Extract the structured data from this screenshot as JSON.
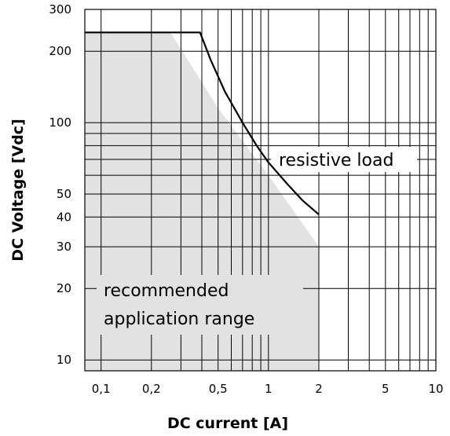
{
  "chart_data": {
    "type": "line",
    "title": "",
    "xlabel": "DC current [A]",
    "ylabel": "DC Voltage [Vdc]",
    "x_scale": "log",
    "y_scale": "log",
    "xlim": [
      0.08,
      10
    ],
    "ylim": [
      9,
      300
    ],
    "grid": true,
    "x_ticks": [
      {
        "value": 0.1,
        "label": "0,1"
      },
      {
        "value": 0.2,
        "label": "0,2"
      },
      {
        "value": 0.5,
        "label": "0,5"
      },
      {
        "value": 1,
        "label": "1"
      },
      {
        "value": 2,
        "label": "2"
      },
      {
        "value": 5,
        "label": "5"
      },
      {
        "value": 10,
        "label": "10"
      }
    ],
    "y_ticks": [
      {
        "value": 10,
        "label": "10"
      },
      {
        "value": 20,
        "label": "20"
      },
      {
        "value": 30,
        "label": "30"
      },
      {
        "value": 40,
        "label": "40"
      },
      {
        "value": 50,
        "label": "50"
      },
      {
        "value": 100,
        "label": "100"
      },
      {
        "value": 200,
        "label": "200"
      },
      {
        "value": 300,
        "label": "300"
      }
    ],
    "x_grid": [
      0.1,
      0.2,
      0.3,
      0.4,
      0.5,
      0.6,
      0.7,
      0.8,
      0.9,
      1,
      2,
      3,
      4,
      5,
      6,
      7,
      8,
      9,
      10
    ],
    "y_grid": [
      10,
      20,
      30,
      40,
      50,
      60,
      70,
      80,
      90,
      100,
      200,
      300
    ],
    "series": [
      {
        "name": "resistive load",
        "points": [
          [
            0.08,
            240
          ],
          [
            0.39,
            240
          ],
          [
            0.45,
            185
          ],
          [
            0.55,
            135
          ],
          [
            0.7,
            100
          ],
          [
            0.85,
            80
          ],
          [
            1,
            68
          ],
          [
            1.3,
            55
          ],
          [
            1.6,
            47
          ],
          [
            2,
            41
          ]
        ]
      }
    ],
    "area": {
      "name": "recommended application range",
      "points": [
        [
          0.08,
          240
        ],
        [
          0.26,
          240
        ],
        [
          0.5,
          115
        ],
        [
          1,
          60
        ],
        [
          2,
          30
        ],
        [
          2,
          9
        ],
        [
          0.08,
          9
        ]
      ],
      "color": "#e2e2e2"
    }
  }
}
